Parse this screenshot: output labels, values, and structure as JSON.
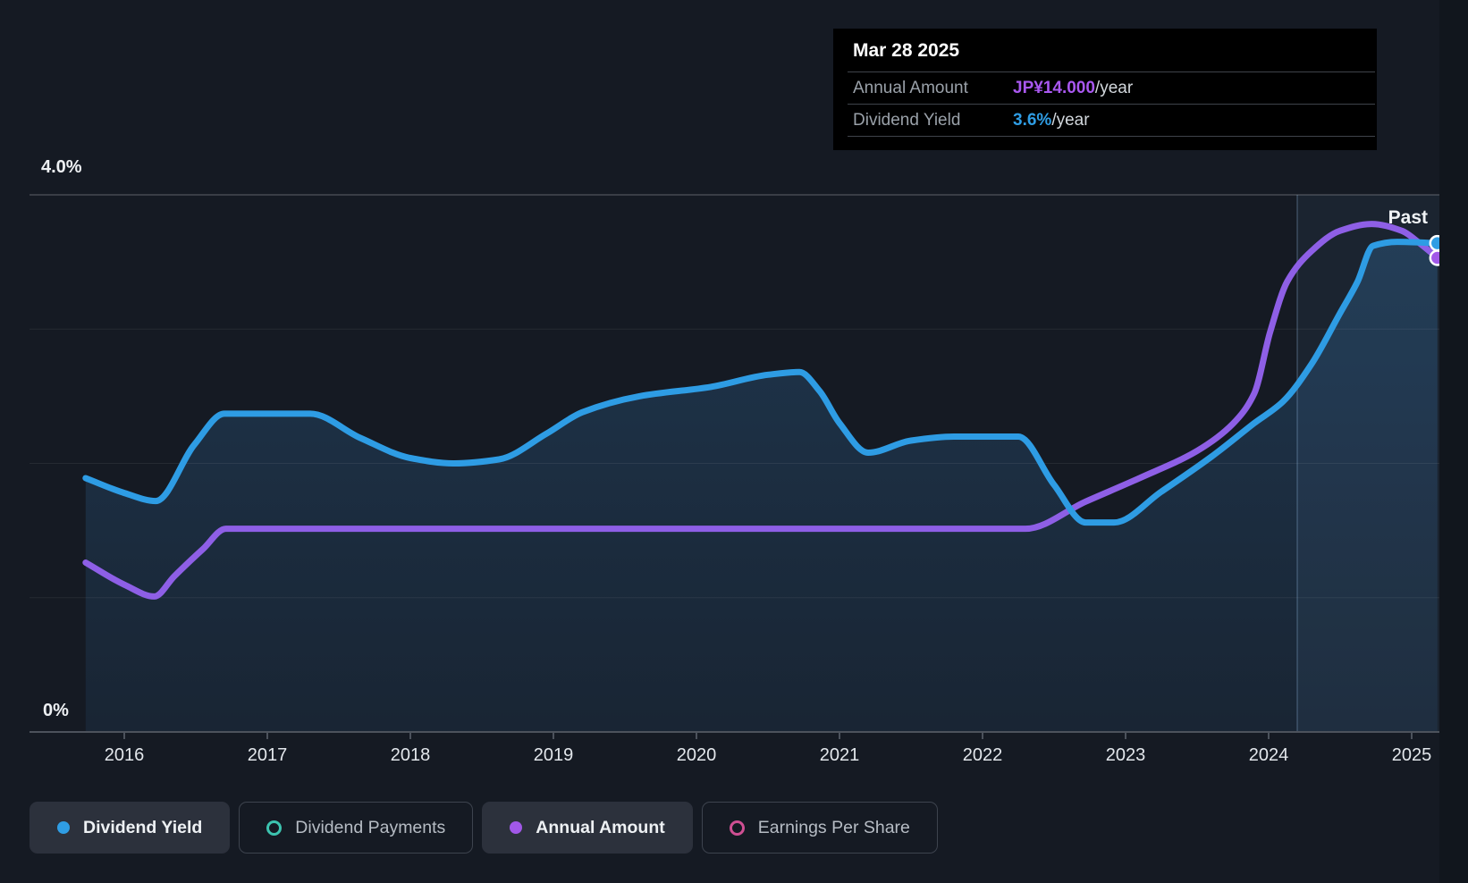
{
  "tooltip": {
    "date": "Mar 28 2025",
    "rows": [
      {
        "label": "Annual Amount",
        "value": "JP¥14.000",
        "suffix": "/year",
        "value_color": "#a958f0"
      },
      {
        "label": "Dividend Yield",
        "value": "3.6%",
        "suffix": "/year",
        "value_color": "#2f9de4"
      }
    ]
  },
  "chart_data": {
    "type": "line",
    "past_label": "Past",
    "x_axis": {
      "labels": [
        "2016",
        "2017",
        "2018",
        "2019",
        "2020",
        "2021",
        "2022",
        "2023",
        "2024",
        "2025"
      ],
      "range_years": [
        2015.73,
        2025.2
      ]
    },
    "y_axis": {
      "top_label": "4.0%",
      "bottom_label": "0%",
      "percent_range": [
        0,
        4
      ],
      "gridlines_percent": [
        4,
        3,
        2,
        1
      ]
    },
    "past_region_start_year": 2024.2,
    "series": [
      {
        "name": "Dividend Yield",
        "unit": "percent",
        "color": "#2e9ce4",
        "ylim": [
          0,
          4
        ],
        "marker_color": "#2f9de4",
        "points": [
          [
            2015.73,
            1.89
          ],
          [
            2016.0,
            1.78
          ],
          [
            2016.22,
            1.72
          ],
          [
            2016.49,
            2.14
          ],
          [
            2016.7,
            2.37
          ],
          [
            2017.3,
            2.37
          ],
          [
            2017.65,
            2.19
          ],
          [
            2018.0,
            2.04
          ],
          [
            2018.3,
            2.0
          ],
          [
            2018.62,
            2.03
          ],
          [
            2018.95,
            2.22
          ],
          [
            2019.2,
            2.38
          ],
          [
            2019.6,
            2.5
          ],
          [
            2020.1,
            2.57
          ],
          [
            2020.5,
            2.66
          ],
          [
            2020.72,
            2.68
          ],
          [
            2020.86,
            2.54
          ],
          [
            2021.0,
            2.3
          ],
          [
            2021.2,
            2.08
          ],
          [
            2021.5,
            2.17
          ],
          [
            2021.8,
            2.2
          ],
          [
            2022.25,
            2.2
          ],
          [
            2022.5,
            1.84
          ],
          [
            2022.72,
            1.56
          ],
          [
            2022.92,
            1.56
          ],
          [
            2023.25,
            1.79
          ],
          [
            2023.6,
            2.05
          ],
          [
            2023.9,
            2.3
          ],
          [
            2024.1,
            2.46
          ],
          [
            2024.3,
            2.74
          ],
          [
            2024.5,
            3.12
          ],
          [
            2024.62,
            3.35
          ],
          [
            2024.73,
            3.62
          ],
          [
            2024.9,
            3.65
          ],
          [
            2025.18,
            3.64
          ]
        ]
      },
      {
        "name": "Annual Amount",
        "unit": "JP¥/year",
        "color": "#8e5fe6",
        "ylim": [
          0,
          15.86
        ],
        "marker_color": "#a158e8",
        "points": [
          [
            2015.73,
            5.0
          ],
          [
            2016.0,
            4.35
          ],
          [
            2016.21,
            4.0
          ],
          [
            2016.35,
            4.6
          ],
          [
            2016.55,
            5.4
          ],
          [
            2016.71,
            6.0
          ],
          [
            2019.0,
            6.0
          ],
          [
            2022.3,
            6.0
          ],
          [
            2022.72,
            6.8
          ],
          [
            2023.1,
            7.5
          ],
          [
            2023.5,
            8.3
          ],
          [
            2023.75,
            9.1
          ],
          [
            2023.9,
            10.0
          ],
          [
            2024.01,
            11.8
          ],
          [
            2024.13,
            13.3
          ],
          [
            2024.3,
            14.2
          ],
          [
            2024.5,
            14.8
          ],
          [
            2024.72,
            15.0
          ],
          [
            2024.93,
            14.8
          ],
          [
            2025.05,
            14.45
          ],
          [
            2025.18,
            14.0
          ]
        ]
      }
    ]
  },
  "legend": {
    "items": [
      {
        "label": "Dividend Yield",
        "dot": "filled",
        "color": "#2f9de4",
        "active": true
      },
      {
        "label": "Dividend Payments",
        "dot": "ring",
        "color": "#3cc3af",
        "active": false
      },
      {
        "label": "Annual Amount",
        "dot": "filled",
        "color": "#a158e8",
        "active": true
      },
      {
        "label": "Earnings Per Share",
        "dot": "ring",
        "color": "#cf4f93",
        "active": false
      }
    ]
  }
}
